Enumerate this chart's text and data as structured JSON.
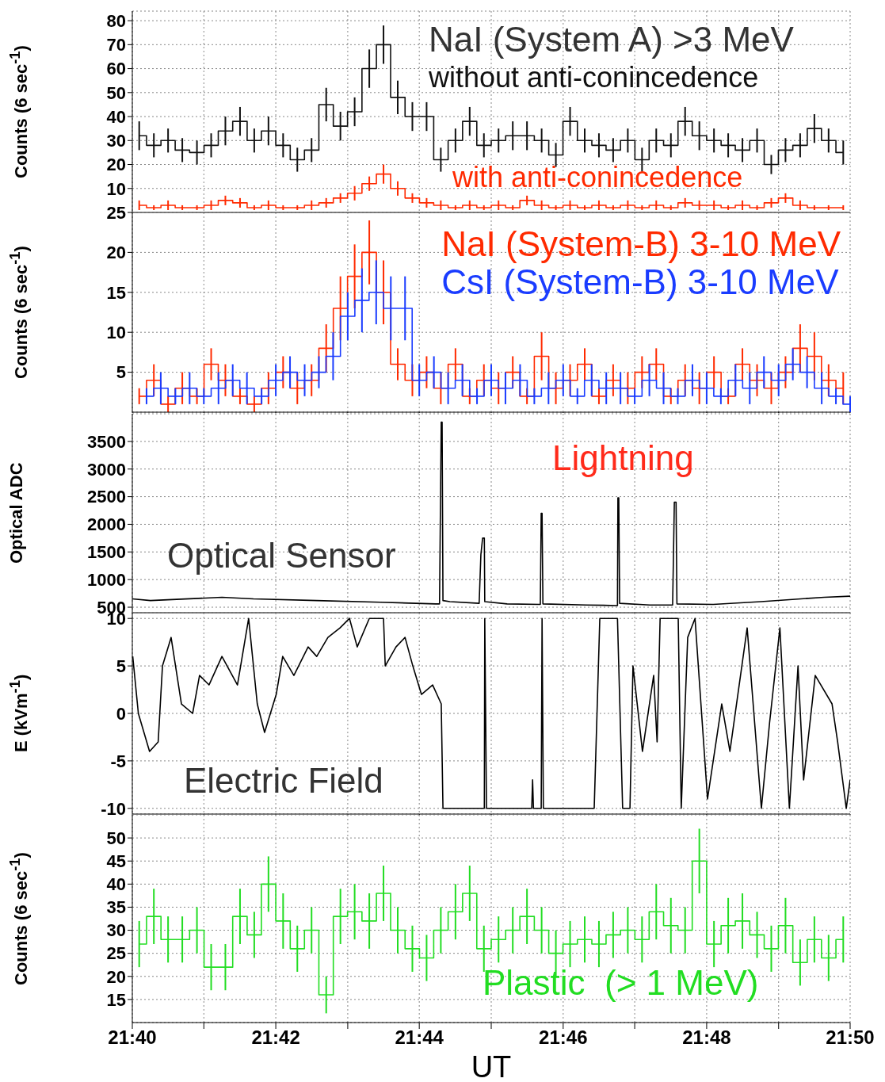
{
  "chart_data": [
    {
      "type": "step",
      "ylabel": "Counts (6 sec$^{-1}$)",
      "annotations": [
        "NaI (System A) >3 MeV"
      ],
      "xlim": [
        21.6667,
        21.8333
      ],
      "ylim": [
        0,
        84
      ],
      "yticks": [
        10,
        20,
        30,
        40,
        50,
        60,
        70,
        80
      ],
      "grid": true,
      "tick_labels": "y",
      "xticks": [
        {
          "value": 21.6667,
          "label": null
        },
        {
          "value": 21.6833,
          "label": null
        },
        {
          "value": 21.7,
          "label": null
        },
        {
          "value": 21.7167,
          "label": null
        },
        {
          "value": 21.7333,
          "label": null
        },
        {
          "value": 21.75,
          "label": null
        },
        {
          "value": 21.7667,
          "label": null
        },
        {
          "value": 21.7833,
          "label": null
        },
        {
          "value": 21.8,
          "label": null
        },
        {
          "value": 21.8167,
          "label": null
        },
        {
          "value": 21.8333,
          "label": null
        }
      ],
      "x": [
        21.6683,
        21.6717,
        21.675,
        21.6783,
        21.6817,
        21.685,
        21.6883,
        21.6917,
        21.695,
        21.6983,
        21.7017,
        21.705,
        21.7083,
        21.7117,
        21.715,
        21.7183,
        21.7217,
        21.725,
        21.7283,
        21.7317,
        21.735,
        21.7383,
        21.7417,
        21.745,
        21.7483,
        21.7517,
        21.755,
        21.7583,
        21.7617,
        21.765,
        21.7683,
        21.7717,
        21.775,
        21.7783,
        21.7817,
        21.785,
        21.7883,
        21.7917,
        21.795,
        21.7983,
        21.8017,
        21.805,
        21.8083,
        21.8117,
        21.815,
        21.8183,
        21.8217,
        21.825,
        21.8283,
        21.8317
      ],
      "series": [
        {
          "name": "without anti-conincedence",
          "color": "#111111",
          "values": [
            32,
            28,
            30,
            26,
            25,
            28,
            34,
            38,
            30,
            34,
            28,
            22,
            26,
            45,
            36,
            42,
            60,
            70,
            48,
            40,
            40,
            22,
            30,
            38,
            28,
            30,
            32,
            32,
            30,
            24,
            38,
            30,
            28,
            26,
            30,
            22,
            30,
            28,
            38,
            32,
            30,
            28,
            26,
            30,
            20,
            26,
            28,
            35,
            30,
            25
          ],
          "errors": [
            6,
            5,
            5,
            5,
            5,
            5,
            6,
            6,
            5,
            6,
            5,
            5,
            5,
            7,
            6,
            6,
            8,
            8,
            7,
            6,
            6,
            5,
            5,
            6,
            5,
            5,
            6,
            6,
            5,
            5,
            6,
            5,
            5,
            5,
            5,
            5,
            5,
            5,
            6,
            6,
            5,
            5,
            5,
            5,
            4,
            5,
            5,
            6,
            5,
            5
          ]
        },
        {
          "name": "with anti-conincedence",
          "color": "#ff2a00",
          "values": [
            3,
            2,
            3,
            2,
            2,
            3,
            5,
            4,
            2,
            3,
            2,
            2,
            3,
            4,
            6,
            8,
            12,
            16,
            10,
            6,
            4,
            3,
            2,
            3,
            2,
            3,
            2,
            5,
            3,
            2,
            3,
            2,
            3,
            2,
            3,
            2,
            3,
            2,
            4,
            3,
            3,
            2,
            3,
            2,
            4,
            6,
            3,
            2,
            2,
            2
          ],
          "errors": [
            2,
            1,
            2,
            1,
            1,
            2,
            2,
            2,
            1,
            2,
            1,
            1,
            2,
            2,
            2,
            3,
            3,
            4,
            3,
            2,
            2,
            2,
            1,
            2,
            1,
            2,
            1,
            2,
            2,
            1,
            2,
            1,
            2,
            1,
            2,
            1,
            2,
            1,
            2,
            2,
            2,
            1,
            2,
            1,
            2,
            2,
            2,
            1,
            1,
            1
          ]
        }
      ]
    },
    {
      "type": "step",
      "ylabel": "Counts (6 sec$^{-1}$)",
      "xlim": [
        21.6667,
        21.8333
      ],
      "ylim": [
        0,
        25
      ],
      "yticks": [
        5,
        10,
        15,
        20,
        25
      ],
      "grid": true,
      "tick_labels": "y",
      "legend": "top right",
      "xticks": [
        {
          "value": 21.6667,
          "label": null
        },
        {
          "value": 21.6833,
          "label": null
        },
        {
          "value": 21.7,
          "label": null
        },
        {
          "value": 21.7167,
          "label": null
        },
        {
          "value": 21.7333,
          "label": null
        },
        {
          "value": 21.75,
          "label": null
        },
        {
          "value": 21.7667,
          "label": null
        },
        {
          "value": 21.7833,
          "label": null
        },
        {
          "value": 21.8,
          "label": null
        },
        {
          "value": 21.8167,
          "label": null
        },
        {
          "value": 21.8333,
          "label": null
        }
      ],
      "x": [
        21.6683,
        21.6717,
        21.675,
        21.6783,
        21.6817,
        21.685,
        21.6883,
        21.6917,
        21.695,
        21.6983,
        21.7017,
        21.705,
        21.7083,
        21.7117,
        21.715,
        21.7183,
        21.7217,
        21.725,
        21.7283,
        21.7317,
        21.735,
        21.7383,
        21.7417,
        21.745,
        21.7483,
        21.7517,
        21.755,
        21.7583,
        21.7617,
        21.765,
        21.7683,
        21.7717,
        21.775,
        21.7783,
        21.7817,
        21.785,
        21.7883,
        21.7917,
        21.795,
        21.7983,
        21.8017,
        21.805,
        21.8083,
        21.8117,
        21.815,
        21.8183,
        21.8217,
        21.825,
        21.8283,
        21.8317
      ],
      "series": [
        {
          "name": "NaI (System-B) 3-10 MeV",
          "color": "#ff2a00",
          "values": [
            2,
            4,
            1,
            3,
            2,
            6,
            4,
            2,
            1,
            3,
            5,
            3,
            4,
            8,
            13,
            17,
            20,
            15,
            6,
            4,
            5,
            3,
            6,
            2,
            4,
            3,
            5,
            2,
            7,
            3,
            4,
            6,
            2,
            4,
            3,
            5,
            6,
            2,
            4,
            3,
            5,
            2,
            6,
            4,
            3,
            5,
            8,
            7,
            4,
            3
          ],
          "errors": [
            1,
            2,
            1,
            2,
            1,
            2,
            2,
            1,
            1,
            2,
            2,
            2,
            2,
            3,
            4,
            4,
            4,
            4,
            2,
            2,
            2,
            2,
            2,
            1,
            2,
            2,
            2,
            1,
            3,
            2,
            2,
            2,
            1,
            2,
            2,
            2,
            2,
            1,
            2,
            2,
            2,
            1,
            2,
            2,
            2,
            2,
            3,
            3,
            2,
            2
          ]
        },
        {
          "name": "CsI (System-B) 3-10 MeV",
          "color": "#1a3cff",
          "x": [
            21.67,
            21.6733,
            21.6767,
            21.68,
            21.6833,
            21.6867,
            21.69,
            21.6933,
            21.6967,
            21.7,
            21.7033,
            21.7067,
            21.71,
            21.7133,
            21.7167,
            21.72,
            21.7233,
            21.7267,
            21.73,
            21.7333,
            21.7367,
            21.74,
            21.7433,
            21.7467,
            21.75,
            21.7533,
            21.7567,
            21.76,
            21.7633,
            21.7667,
            21.77,
            21.7733,
            21.7767,
            21.78,
            21.7833,
            21.7867,
            21.79,
            21.7933,
            21.7967,
            21.8,
            21.8033,
            21.8067,
            21.81,
            21.8133,
            21.8167,
            21.82,
            21.8233,
            21.8267,
            21.83,
            21.8333
          ],
          "values": [
            2,
            3,
            2,
            3,
            2,
            3,
            4,
            3,
            2,
            4,
            5,
            4,
            5,
            7,
            12,
            14,
            15,
            13,
            13,
            4,
            5,
            3,
            4,
            2,
            4,
            3,
            4,
            2,
            3,
            4,
            2,
            4,
            3,
            3,
            2,
            4,
            3,
            2,
            4,
            3,
            2,
            4,
            3,
            5,
            4,
            6,
            5,
            3,
            2,
            1
          ],
          "errors": [
            1,
            2,
            1,
            2,
            1,
            2,
            2,
            2,
            1,
            2,
            2,
            2,
            2,
            3,
            3,
            4,
            4,
            4,
            4,
            2,
            2,
            2,
            2,
            1,
            2,
            2,
            2,
            1,
            2,
            2,
            1,
            2,
            2,
            2,
            1,
            2,
            2,
            1,
            2,
            2,
            1,
            2,
            2,
            2,
            2,
            2,
            2,
            2,
            1,
            1
          ]
        }
      ]
    },
    {
      "type": "line",
      "ylabel": "Optical ADC",
      "annotations": [
        "Optical Sensor",
        "Lightning"
      ],
      "xlim": [
        21.6667,
        21.8333
      ],
      "ylim": [
        400,
        4000
      ],
      "yticks": [
        500,
        1000,
        1500,
        2000,
        2500,
        3000,
        3500
      ],
      "grid": true,
      "tick_labels": "y",
      "xticks": [
        {
          "value": 21.6667,
          "label": null
        },
        {
          "value": 21.6833,
          "label": null
        },
        {
          "value": 21.7,
          "label": null
        },
        {
          "value": 21.7167,
          "label": null
        },
        {
          "value": 21.7333,
          "label": null
        },
        {
          "value": 21.75,
          "label": null
        },
        {
          "value": 21.7667,
          "label": null
        },
        {
          "value": 21.7833,
          "label": null
        },
        {
          "value": 21.8,
          "label": null
        },
        {
          "value": 21.8167,
          "label": null
        },
        {
          "value": 21.8333,
          "label": null
        }
      ],
      "x": [
        21.6667,
        21.6709,
        21.6875,
        21.6948,
        21.7095,
        21.7243,
        21.7371,
        21.738,
        21.7384,
        21.7386,
        21.7388,
        21.7404,
        21.7472,
        21.7476,
        21.748,
        21.7484,
        21.7485,
        21.7537,
        21.7614,
        21.7616,
        21.7618,
        21.762,
        21.7721,
        21.7793,
        21.7794,
        21.7796,
        21.7798,
        21.7868,
        21.7921,
        21.7923,
        21.7925,
        21.7929,
        21.7931,
        21.8015,
        21.8126,
        21.8199,
        21.8273,
        21.8333
      ],
      "series": [
        {
          "color": "#000000",
          "values": [
            650,
            620,
            680,
            650,
            620,
            590,
            560,
            560,
            3850,
            3850,
            620,
            600,
            570,
            1450,
            1750,
            1750,
            600,
            560,
            550,
            2200,
            2200,
            560,
            540,
            530,
            2480,
            2480,
            570,
            540,
            540,
            1450,
            2400,
            2400,
            560,
            550,
            600,
            640,
            680,
            700
          ]
        }
      ]
    },
    {
      "type": "line",
      "ylabel": "E (kVm$^{-1}$)",
      "annotations": [
        "Electric Field"
      ],
      "xlim": [
        21.6667,
        21.8333
      ],
      "ylim": [
        -10.6,
        10.6
      ],
      "yticks": [
        -10,
        -5,
        0,
        5,
        10
      ],
      "grid": true,
      "tick_labels": "y",
      "xticks": [
        {
          "value": 21.6667,
          "label": null
        },
        {
          "value": 21.6833,
          "label": null
        },
        {
          "value": 21.7,
          "label": null
        },
        {
          "value": 21.7167,
          "label": null
        },
        {
          "value": 21.7333,
          "label": null
        },
        {
          "value": 21.75,
          "label": null
        },
        {
          "value": 21.7667,
          "label": null
        },
        {
          "value": 21.7833,
          "label": null
        },
        {
          "value": 21.8,
          "label": null
        },
        {
          "value": 21.8167,
          "label": null
        },
        {
          "value": 21.8333,
          "label": null
        }
      ],
      "x": [
        21.6668,
        21.6681,
        21.6707,
        21.6727,
        21.6737,
        21.6757,
        21.6781,
        21.6807,
        21.6823,
        21.6845,
        21.6875,
        21.6899,
        21.6911,
        21.6937,
        21.6957,
        21.6974,
        21.7001,
        21.7016,
        21.7042,
        21.7075,
        21.7095,
        21.7121,
        21.7149,
        21.7171,
        21.7189,
        21.7217,
        21.725,
        21.7254,
        21.7279,
        21.73,
        21.7318,
        21.7338,
        21.7364,
        21.7384,
        21.7388,
        21.7484,
        21.7485,
        21.7489,
        21.7594,
        21.7596,
        21.7598,
        21.7616,
        21.7618,
        21.7621,
        21.7739,
        21.7752,
        21.7793,
        21.7805,
        21.7822,
        21.7829,
        21.7851,
        21.7877,
        21.7885,
        21.7892,
        21.7934,
        21.7941,
        21.7956,
        21.7973,
        21.8002,
        21.8035,
        21.8054,
        21.8094,
        21.8127,
        21.8146,
        21.817,
        21.8192,
        21.8212,
        21.8225,
        21.8252,
        21.8291,
        21.8304,
        21.8324,
        21.8333
      ],
      "series": [
        {
          "color": "#000000",
          "values": [
            6,
            0,
            -4,
            -3,
            5,
            8,
            1,
            0,
            4,
            3,
            6,
            4,
            3,
            10,
            1,
            -2,
            2,
            6,
            4,
            7,
            6,
            8,
            9,
            10,
            7,
            10,
            10,
            5,
            7,
            8,
            5,
            2,
            3,
            1,
            -10,
            -10,
            10,
            -10,
            -10,
            -7,
            -10,
            -10,
            10,
            -10,
            -10,
            10,
            10,
            -10,
            -10,
            5,
            -4,
            4,
            -3,
            10,
            10,
            -10,
            8,
            10,
            -9,
            1,
            -4,
            9,
            -10,
            -1,
            9,
            -10,
            5,
            -7,
            4,
            1,
            -3,
            -10,
            -7
          ]
        }
      ]
    },
    {
      "type": "step",
      "ylabel": "Counts (6 sec$^{-1}$)",
      "xlabel": "UT",
      "xlim": [
        21.6667,
        21.8333
      ],
      "ylim": [
        10,
        55
      ],
      "yticks": [
        15,
        20,
        25,
        30,
        35,
        40,
        45,
        50
      ],
      "grid": true,
      "xticks": [
        {
          "value": 21.6667,
          "label": "21:40"
        },
        {
          "value": 21.6833,
          "label": null
        },
        {
          "value": 21.7,
          "label": "21:42"
        },
        {
          "value": 21.7167,
          "label": null
        },
        {
          "value": 21.7333,
          "label": "21:44"
        },
        {
          "value": 21.75,
          "label": null
        },
        {
          "value": 21.7667,
          "label": "21:46"
        },
        {
          "value": 21.7833,
          "label": null
        },
        {
          "value": 21.8,
          "label": "21:48"
        },
        {
          "value": 21.8167,
          "label": null
        },
        {
          "value": 21.8333,
          "label": "21:50"
        }
      ],
      "x": [
        21.6683,
        21.6717,
        21.675,
        21.6783,
        21.6817,
        21.685,
        21.6883,
        21.6917,
        21.695,
        21.6983,
        21.7017,
        21.705,
        21.7083,
        21.7117,
        21.715,
        21.7183,
        21.7217,
        21.725,
        21.7283,
        21.7317,
        21.735,
        21.7383,
        21.7417,
        21.745,
        21.7483,
        21.7517,
        21.755,
        21.7583,
        21.7617,
        21.765,
        21.7683,
        21.7717,
        21.775,
        21.7783,
        21.7817,
        21.785,
        21.7883,
        21.7917,
        21.795,
        21.7983,
        21.8017,
        21.805,
        21.8083,
        21.8117,
        21.815,
        21.8183,
        21.8217,
        21.825,
        21.8283,
        21.8317
      ],
      "series": [
        {
          "name": "Plastic  (> 1 MeV)",
          "color": "#22dd22",
          "values": [
            27,
            33,
            28,
            28,
            30,
            22,
            22,
            33,
            29,
            40,
            32,
            26,
            30,
            16,
            33,
            34,
            32,
            38,
            30,
            26,
            24,
            30,
            34,
            38,
            26,
            28,
            30,
            33,
            30,
            25,
            27,
            28,
            27,
            29,
            30,
            28,
            34,
            31,
            30,
            45,
            27,
            31,
            32,
            29,
            26,
            31,
            23,
            28,
            24,
            28
          ],
          "errors": [
            5,
            6,
            5,
            5,
            5,
            5,
            5,
            6,
            5,
            6,
            6,
            5,
            5,
            4,
            6,
            6,
            6,
            6,
            5,
            5,
            5,
            5,
            6,
            6,
            5,
            5,
            5,
            6,
            5,
            5,
            5,
            5,
            5,
            5,
            5,
            5,
            6,
            6,
            5,
            7,
            5,
            6,
            6,
            5,
            5,
            6,
            5,
            5,
            5,
            5
          ]
        }
      ]
    }
  ]
}
